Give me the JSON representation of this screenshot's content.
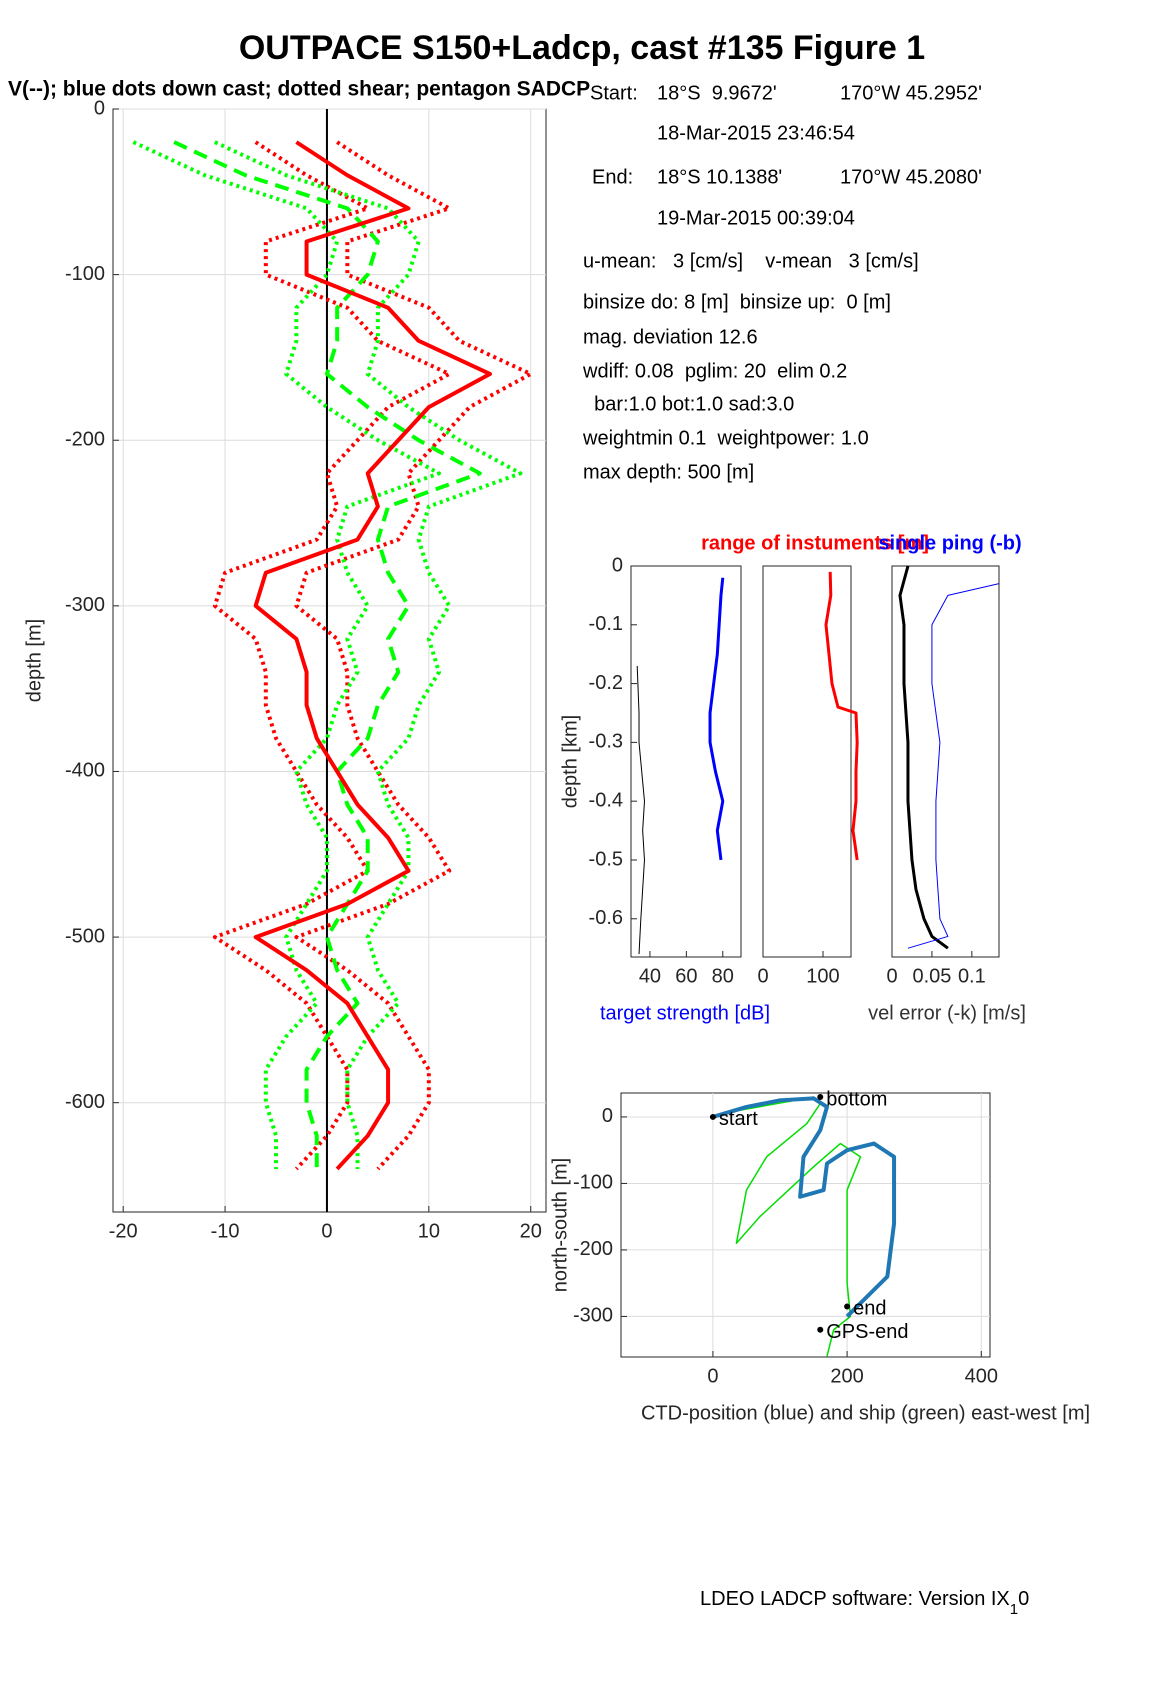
{
  "title": "OUTPACE S150+Ladcp, cast #135  Figure 1",
  "subtitle": "V(--); blue dots down cast; dotted shear; pentagon SADCP",
  "info": [
    [
      "Start:",
      "18°S  9.9672'",
      "170°W 45.2952'"
    ],
    [
      "18-Mar-2015 23:46:54"
    ],
    [
      "End:",
      "18°S 10.1388'",
      "170°W 45.2080'"
    ],
    [
      "19-Mar-2015 00:39:04"
    ],
    [
      "u-mean:   3 [cm/s]    v-mean   3 [cm/s]"
    ],
    [
      "binsize do: 8 [m]  binsize up:  0 [m]"
    ],
    [
      "mag. deviation 12.6"
    ],
    [
      "wdiff: 0.08  pglim: 20  elim 0.2"
    ],
    [
      "  bar:1.0 bot:1.0 sad:3.0"
    ],
    [
      "weightmin 0.1  weightpower: 1.0"
    ],
    [
      "max depth: 500 [m]"
    ]
  ],
  "footer": [
    "LDEO LADCP software: Version IX",
    "1",
    "0"
  ],
  "chart_data": [
    {
      "type": "profile",
      "ylabel": "depth [m]",
      "xlim": [
        -21,
        21.5
      ],
      "ylim": [
        -666,
        0
      ],
      "xticks": [
        -20,
        -10,
        0,
        10,
        20
      ],
      "yticks": [
        -600,
        -500,
        -400,
        -300,
        -200,
        -100,
        0
      ],
      "grid": true,
      "vline": 0,
      "y": [
        -20,
        -40,
        -60,
        -80,
        -100,
        -120,
        -140,
        -160,
        -180,
        -200,
        -220,
        -240,
        -260,
        -280,
        -300,
        -320,
        -340,
        -360,
        -380,
        -400,
        -420,
        -440,
        -460,
        -480,
        -500,
        -520,
        -540,
        -560,
        -580,
        -600,
        -620,
        -640
      ],
      "series": [
        {
          "color": "#ff0000",
          "dash": "dot",
          "width": 4,
          "values": [
            -7,
            -2,
            4,
            -6,
            -6,
            2,
            5,
            12,
            6,
            3,
            0,
            1,
            -1,
            -10,
            -11,
            -7,
            -6,
            -6,
            -5,
            -3,
            -1,
            2,
            4,
            -2,
            -11,
            -6,
            -2,
            0,
            2,
            2,
            0,
            -3
          ]
        },
        {
          "color": "#ff0000",
          "dash": "dot",
          "width": 4,
          "values": [
            1,
            6,
            12,
            2,
            2,
            10,
            13,
            20,
            14,
            11,
            8,
            9,
            7,
            -2,
            -3,
            1,
            2,
            2,
            3,
            5,
            7,
            10,
            12,
            6,
            -3,
            2,
            6,
            8,
            10,
            10,
            8,
            5
          ]
        },
        {
          "color": "#00ff00",
          "dash": "dot",
          "width": 4,
          "values": [
            -19,
            -12,
            -2,
            1,
            0,
            -3,
            -3,
            -4,
            0,
            5,
            11,
            2,
            1,
            2,
            4,
            2,
            3,
            1,
            0,
            -3,
            -2,
            0,
            0,
            -2,
            -4,
            -3,
            -1,
            -4,
            -6,
            -6,
            -5,
            -5
          ]
        },
        {
          "color": "#00ff00",
          "dash": "dot",
          "width": 4,
          "values": [
            -11,
            -4,
            6,
            9,
            8,
            5,
            5,
            4,
            8,
            13,
            19,
            10,
            9,
            10,
            12,
            10,
            11,
            9,
            8,
            5,
            6,
            8,
            8,
            6,
            4,
            5,
            7,
            4,
            2,
            2,
            3,
            3
          ]
        },
        {
          "color": "#00ff00",
          "dash": "dash",
          "width": 4,
          "values": [
            -15,
            -8,
            2,
            5,
            4,
            1,
            1,
            0,
            4,
            9,
            15,
            6,
            5,
            6,
            8,
            6,
            7,
            5,
            4,
            1,
            2,
            4,
            4,
            2,
            0,
            1,
            3,
            0,
            -2,
            -2,
            -1,
            -1
          ]
        },
        {
          "color": "#ff0000",
          "width": 4,
          "values": [
            -3,
            2,
            8,
            -2,
            -2,
            6,
            9,
            16,
            10,
            7,
            4,
            5,
            3,
            -6,
            -7,
            -3,
            -2,
            -2,
            -1,
            1,
            3,
            6,
            8,
            2,
            -7,
            -2,
            2,
            4,
            6,
            6,
            4,
            1
          ]
        }
      ]
    },
    {
      "type": "profile",
      "ylabel": "depth [km]",
      "xlabel": "target strength [dB]",
      "xlabel_color": "#0000ff",
      "xlim": [
        29.6,
        90
      ],
      "ylim": [
        -0.665,
        0
      ],
      "xticks": [
        40,
        60,
        80
      ],
      "yticks": [
        -0.6,
        -0.5,
        -0.4,
        -0.3,
        -0.2,
        -0.1,
        0
      ],
      "series": [
        {
          "color": "#0000ff",
          "width": 3,
          "y": [
            -0.02,
            -0.05,
            -0.1,
            -0.15,
            -0.2,
            -0.25,
            -0.3,
            -0.35,
            -0.4,
            -0.45,
            -0.5
          ],
          "values": [
            80,
            79,
            78,
            77,
            75,
            73,
            73,
            76,
            80,
            77,
            79
          ]
        },
        {
          "color": "#000000",
          "width": 1,
          "y": [
            -0.17,
            -0.25,
            -0.3,
            -0.4,
            -0.45,
            -0.5,
            -0.6,
            -0.66
          ],
          "values": [
            33,
            34,
            34,
            37,
            36,
            37,
            35,
            34
          ]
        }
      ]
    },
    {
      "type": "profile",
      "title": "range of instuments [m]",
      "title_color": "#ff0000",
      "xlim": [
        0,
        146.7
      ],
      "ylim": [
        -0.665,
        0
      ],
      "xticks": [
        0,
        100
      ],
      "series": [
        {
          "color": "#ff0000",
          "width": 3,
          "y": [
            -0.01,
            -0.05,
            -0.1,
            -0.15,
            -0.2,
            -0.24,
            -0.25,
            -0.3,
            -0.35,
            -0.4,
            -0.45,
            -0.5
          ],
          "values": [
            112,
            113,
            105,
            110,
            115,
            125,
            155,
            157,
            155,
            155,
            150,
            157
          ]
        }
      ]
    },
    {
      "type": "profile",
      "title": "single ping (-b)",
      "title_color": "#0000ff",
      "xlabel": "vel error (-k) [m/s]",
      "xlabel_color": "#333333",
      "xlim": [
        0,
        0.134
      ],
      "ylim": [
        -0.665,
        0
      ],
      "xticks": [
        0,
        0.05,
        0.1
      ],
      "series": [
        {
          "color": "#000000",
          "width": 3,
          "y": [
            0,
            -0.05,
            -0.1,
            -0.2,
            -0.3,
            -0.4,
            -0.5,
            -0.55,
            -0.6,
            -0.63,
            -0.65
          ],
          "values": [
            0.02,
            0.01,
            0.015,
            0.015,
            0.02,
            0.02,
            0.025,
            0.03,
            0.04,
            0.05,
            0.07
          ]
        },
        {
          "color": "#0000ff",
          "width": 1,
          "y": [
            -0.03,
            -0.05,
            -0.1,
            -0.2,
            -0.3,
            -0.4,
            -0.5,
            -0.6,
            -0.63,
            -0.65
          ],
          "values": [
            0.134,
            0.07,
            0.05,
            0.05,
            0.06,
            0.055,
            0.055,
            0.06,
            0.07,
            0.02
          ]
        }
      ]
    },
    {
      "type": "line",
      "xlabel": "CTD-position (blue) and ship (green) east-west [m]",
      "ylabel": "north-south [m]",
      "xlim": [
        -137,
        413
      ],
      "ylim": [
        -361,
        36
      ],
      "xticks": [
        0,
        200,
        400
      ],
      "yticks": [
        -300,
        -200,
        -100,
        0
      ],
      "grid": true,
      "series": [
        {
          "color": "#00dd00",
          "width": 1.5,
          "x": [
            0,
            40,
            150,
            160,
            140,
            80,
            50,
            35,
            70,
            150,
            190,
            220,
            200,
            200,
            200,
            205,
            180,
            170
          ],
          "values": [
            0,
            10,
            30,
            20,
            -10,
            -60,
            -110,
            -190,
            -150,
            -75,
            -40,
            -60,
            -110,
            -180,
            -250,
            -300,
            -320,
            -360
          ]
        },
        {
          "color": "#1f77b4",
          "width": 4,
          "x": [
            0,
            50,
            100,
            150,
            170,
            160,
            135,
            130,
            165,
            170,
            200,
            240,
            270,
            270,
            260,
            230,
            210,
            200
          ],
          "values": [
            0,
            15,
            25,
            28,
            15,
            -20,
            -60,
            -120,
            -110,
            -70,
            -50,
            -40,
            -60,
            -160,
            -240,
            -270,
            -290,
            -300
          ]
        }
      ],
      "annotations": [
        {
          "text": "bottom",
          "x": 160,
          "y": 30
        },
        {
          "text": "start",
          "x": 0,
          "y": 0
        },
        {
          "text": "end",
          "x": 200,
          "y": -285
        },
        {
          "text": "GPS-end",
          "x": 160,
          "y": -320
        }
      ]
    }
  ]
}
